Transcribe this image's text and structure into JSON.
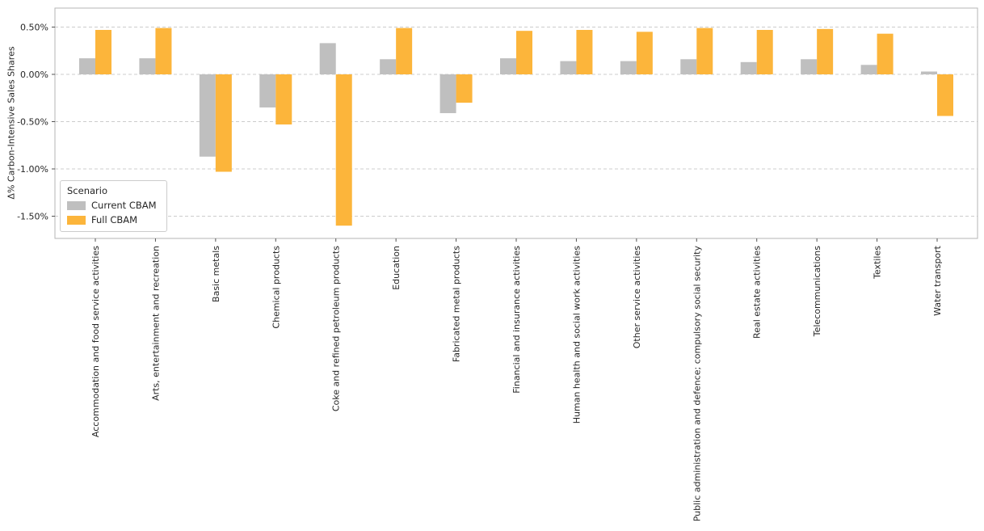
{
  "chart_data": {
    "type": "bar",
    "title": "",
    "xlabel": "",
    "ylabel": "Δ% Carbon-Intensive Sales Shares",
    "legend_title": "Scenario",
    "legend_position": "lower left",
    "grid": "horizontal dashed",
    "ylim": [
      -1.73,
      0.7
    ],
    "yticks": [
      0.5,
      0.0,
      -0.5,
      -1.0,
      -1.5
    ],
    "ytick_labels": [
      "0.50%",
      "0.00%",
      "-0.50%",
      "-1.00%",
      "-1.50%"
    ],
    "categories": [
      "Accommodation and food service activities",
      "Arts, entertainment and recreation",
      "Basic metals",
      "Chemical products",
      "Coke and refined petroleum products",
      "Education",
      "Fabricated metal products",
      "Financial and insurance activities",
      "Human health and social work activities",
      "Other service activities",
      "Public administration and defence; compulsory social security",
      "Real estate activities",
      "Telecommunications",
      "Textiles",
      "Water transport"
    ],
    "series": [
      {
        "name": "Current CBAM",
        "color": "#bfbfbf",
        "values": [
          0.17,
          0.17,
          -0.87,
          -0.35,
          0.33,
          0.16,
          -0.41,
          0.17,
          0.14,
          0.14,
          0.16,
          0.13,
          0.16,
          0.1,
          0.03
        ]
      },
      {
        "name": "Full CBAM",
        "color": "#fcb53b",
        "values": [
          0.47,
          0.49,
          -1.03,
          -0.53,
          -1.6,
          0.49,
          -0.3,
          0.46,
          0.47,
          0.45,
          0.49,
          0.47,
          0.48,
          0.43,
          -0.44
        ]
      }
    ],
    "colors": {
      "grid": "#cccccc",
      "axis_border": "#b5b5b5",
      "tick": "#555555",
      "text": "#262626"
    }
  }
}
